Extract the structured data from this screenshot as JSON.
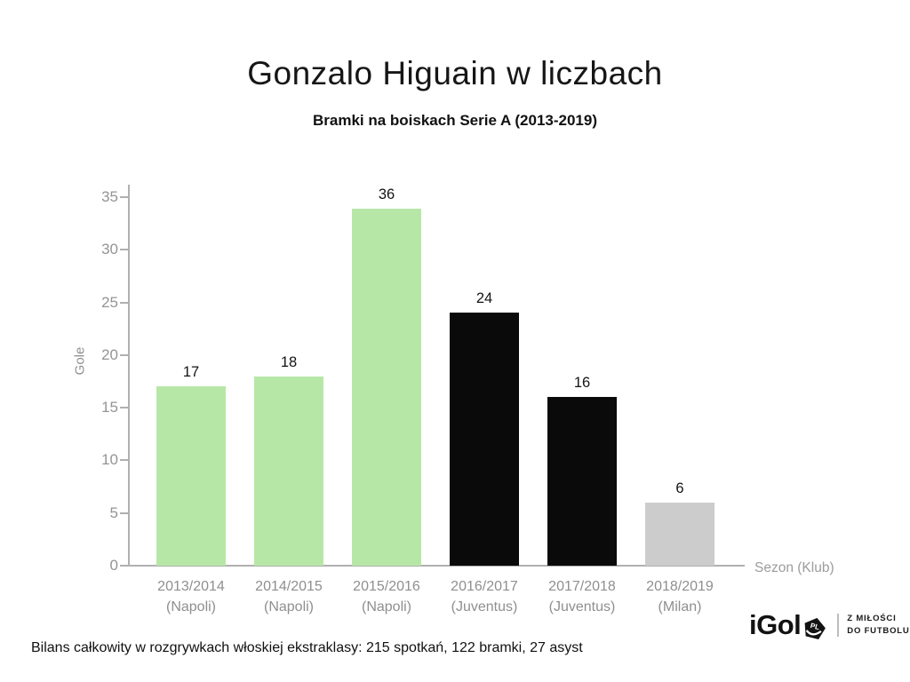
{
  "header": {
    "title": "Gonzalo Higuain w liczbach",
    "subtitle": "Bramki na boiskach Serie A (2013-2019)"
  },
  "chart_data": {
    "type": "bar",
    "title": "Gonzalo Higuain w liczbach",
    "subtitle": "Bramki na boiskach Serie A (2013-2019)",
    "xlabel": "Sezon (Klub)",
    "ylabel": "Gole",
    "ylim": [
      0,
      35
    ],
    "yticks": [
      0,
      5,
      10,
      15,
      20,
      25,
      30,
      35
    ],
    "grid": false,
    "legend": "none",
    "categories": [
      "2013/2014",
      "2014/2015",
      "2015/2016",
      "2016/2017",
      "2017/2018",
      "2018/2019"
    ],
    "category_clubs": [
      "(Napoli)",
      "(Napoli)",
      "(Napoli)",
      "(Juventus)",
      "(Juventus)",
      "(Milan)"
    ],
    "values": [
      17,
      18,
      36,
      24,
      16,
      6
    ],
    "bar_colors": [
      "#b7e7a7",
      "#b7e7a7",
      "#b7e7a7",
      "#0a0a0a",
      "#0a0a0a",
      "#cccccc"
    ],
    "club_colors": {
      "Napoli": "#b7e7a7",
      "Juventus": "#0a0a0a",
      "Milan": "#cccccc"
    }
  },
  "footer": {
    "note": "Bilans całkowity w rozgrywkach włoskiej ekstraklasy: 215 spotkań, 122 bramki, 27 asyst"
  },
  "branding": {
    "logo_text": "iGol",
    "logo_badge": "PL",
    "tagline_line1": "Z MIŁOŚCI",
    "tagline_line2": "DO FUTBOLU"
  }
}
